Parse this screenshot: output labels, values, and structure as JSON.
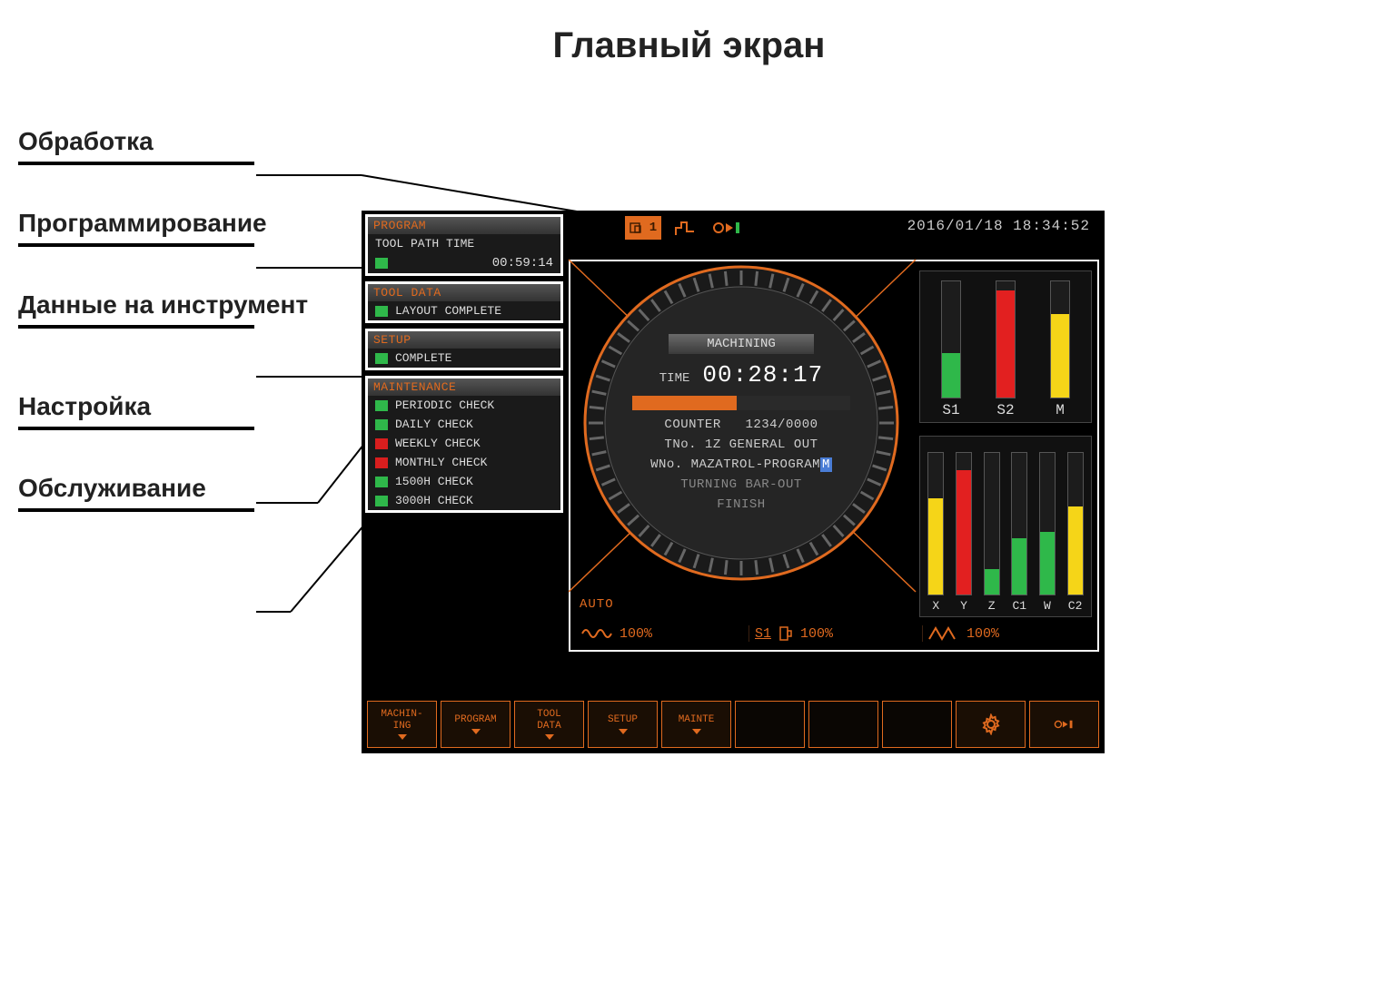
{
  "title": "Главный экран",
  "labels": {
    "machining": "Обработка",
    "programming": "Программирование",
    "tooldata": "Данные на инструмент",
    "setup": "Настройка",
    "maintenance": "Обслуживание"
  },
  "colors": {
    "orange": "#e06a1f",
    "green_led": "#2fb84a",
    "red_led": "#d81e1e",
    "yellow_bar": "#f5d518",
    "green_bar": "#2fb84a",
    "red_bar": "#e22020",
    "panel_bg": "#000000",
    "text": "#d8d8d8",
    "dim_text": "#888888"
  },
  "datetime": "2016/01/18 18:34:52",
  "top_icons": {
    "spindle_badge": "1"
  },
  "panels": {
    "program": {
      "title": "PROGRAM",
      "row_label": "TOOL PATH TIME",
      "time": "00:59:14",
      "led_color": "#2fb84a"
    },
    "tooldata": {
      "title": "TOOL DATA",
      "status": "LAYOUT COMPLETE",
      "led_color": "#2fb84a"
    },
    "setup": {
      "title": "SETUP",
      "status": "COMPLETE",
      "led_color": "#2fb84a"
    },
    "maintenance": {
      "title": "MAINTENANCE",
      "items": [
        {
          "label": "PERIODIC CHECK",
          "led_color": "#2fb84a"
        },
        {
          "label": "DAILY CHECK",
          "led_color": "#2fb84a"
        },
        {
          "label": "WEEKLY CHECK",
          "led_color": "#d81e1e"
        },
        {
          "label": "MONTHLY CHECK",
          "led_color": "#d81e1e"
        },
        {
          "label": "1500H CHECK",
          "led_color": "#2fb84a"
        },
        {
          "label": "3000H CHECK",
          "led_color": "#2fb84a"
        }
      ]
    }
  },
  "main": {
    "title": "MACHINING",
    "time_label": "TIME",
    "time": "00:28:17",
    "progress_pct": 48,
    "progress_color": "#e06a1f",
    "counter_label": "COUNTER",
    "counter": "1234/0000",
    "tno_line": "TNo.  1Z  GENERAL   OUT",
    "wno_prefix": "WNo. MAZATROL-PROGRAM",
    "wno_cursor": "M",
    "line3": "TURNING BAR-OUT",
    "line4": "FINISH",
    "auto": "AUTO"
  },
  "bars_top": [
    {
      "label": "S1",
      "height_pct": 38,
      "color": "#2fb84a"
    },
    {
      "label": "S2",
      "height_pct": 92,
      "color": "#e22020"
    },
    {
      "label": "M",
      "height_pct": 72,
      "color": "#f5d518"
    }
  ],
  "bars_bottom": [
    {
      "label": "X",
      "height_pct": 68,
      "color": "#f5d518"
    },
    {
      "label": "Y",
      "height_pct": 88,
      "color": "#e22020"
    },
    {
      "label": "Z",
      "height_pct": 18,
      "color": "#2fb84a"
    },
    {
      "label": "C1",
      "height_pct": 40,
      "color": "#2fb84a"
    },
    {
      "label": "W",
      "height_pct": 44,
      "color": "#2fb84a"
    },
    {
      "label": "C2",
      "height_pct": 62,
      "color": "#f5d518"
    }
  ],
  "status": {
    "feed_pct": "100%",
    "spindle_label": "S1",
    "spindle_pct": "100%",
    "rapid_pct": "100%"
  },
  "softkeys": [
    {
      "label": "MACHIN-\nING",
      "arrow": true
    },
    {
      "label": "PROGRAM",
      "arrow": true
    },
    {
      "label": "TOOL\nDATA",
      "arrow": true
    },
    {
      "label": "SETUP",
      "arrow": true
    },
    {
      "label": "MAINTE",
      "arrow": true
    },
    {
      "label": "",
      "arrow": false
    },
    {
      "label": "",
      "arrow": false
    },
    {
      "label": "",
      "arrow": false
    },
    {
      "label": "GEAR_ICON",
      "arrow": false
    },
    {
      "label": "ARROW_ICON",
      "arrow": false
    }
  ]
}
